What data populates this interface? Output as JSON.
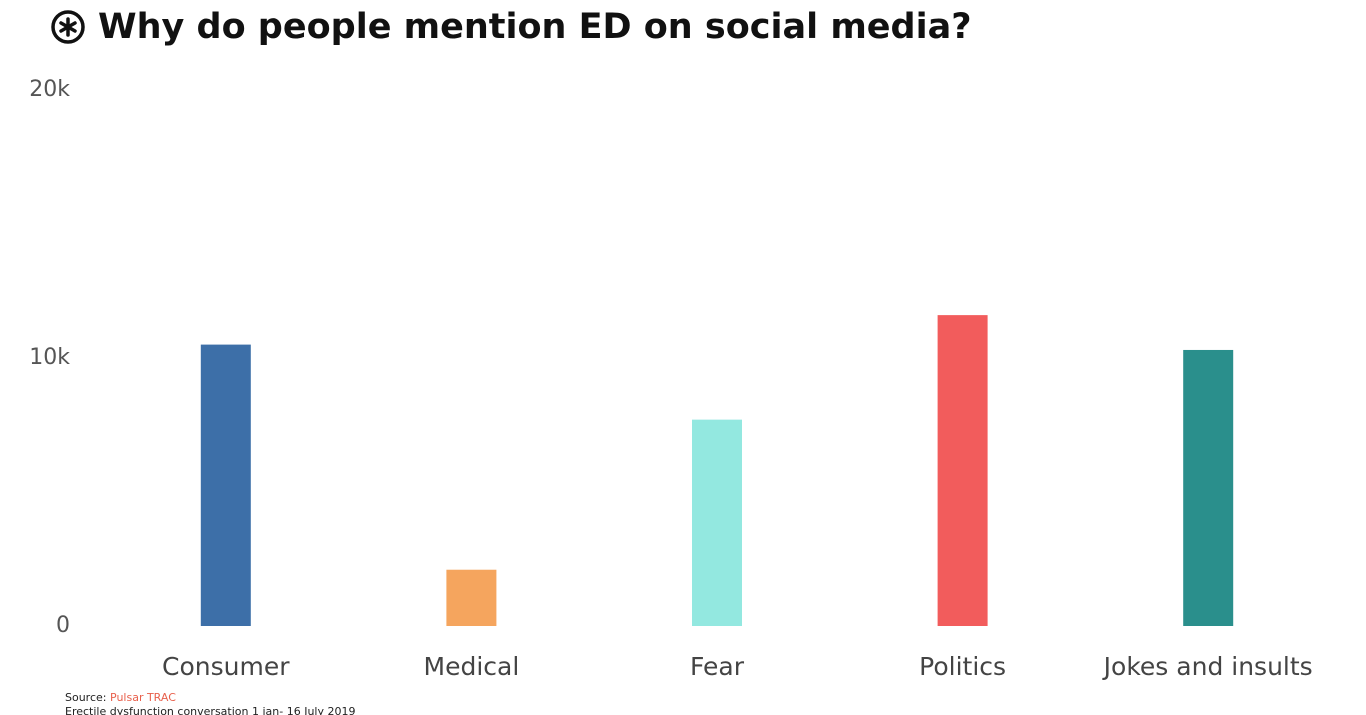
{
  "chart_data": {
    "type": "bar",
    "title": "Why do people mention ED on social media?",
    "categories": [
      "Consumer",
      "Medical",
      "Fear",
      "Politics",
      "Jokes and insults"
    ],
    "values": [
      10500,
      2100,
      7700,
      11600,
      10300
    ],
    "colors": [
      "#3d6fa8",
      "#f5a55e",
      "#93e8e0",
      "#f25c5c",
      "#2a8f8c"
    ],
    "ylim": [
      0,
      20000
    ],
    "yticks": [
      0,
      {
        "value": 10000,
        "label": "10k"
      },
      {
        "value": 20000,
        "label": "20k"
      }
    ],
    "grid": false,
    "source_label": "Source:",
    "source": "Pulsar TRAC",
    "note": "Erectile dysfunction conversation 1 jan- 16 July 2019"
  }
}
